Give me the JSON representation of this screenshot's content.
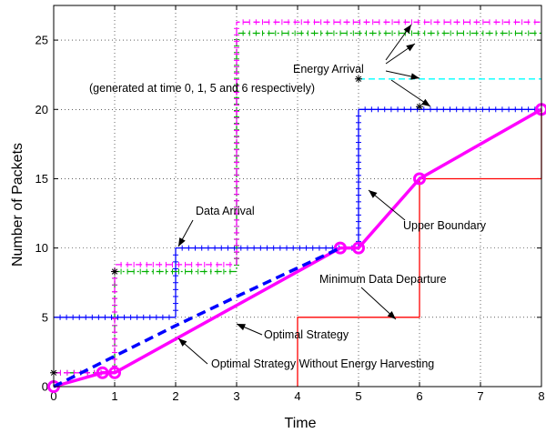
{
  "chart_data": {
    "type": "line",
    "xlabel": "Time",
    "ylabel": "Number of Packets",
    "xlim": [
      0,
      8
    ],
    "ylim": [
      0,
      27.5
    ],
    "xticks": [
      0,
      1,
      2,
      3,
      4,
      5,
      6,
      7,
      8
    ],
    "yticks": [
      0,
      5,
      10,
      15,
      20,
      25
    ],
    "grid": true,
    "series": [
      {
        "color": "#0000ff",
        "style": "solid",
        "marker": "plus",
        "step": true,
        "x": [
          0,
          2,
          2,
          5,
          5,
          8
        ],
        "y": [
          5,
          5,
          10,
          10,
          20,
          20
        ]
      },
      {
        "color": "#ff0000",
        "style": "solid",
        "step": true,
        "x": [
          4,
          4,
          6,
          6,
          8,
          8
        ],
        "y": [
          0,
          5,
          5,
          15,
          15,
          20
        ]
      },
      {
        "color": "#00b000",
        "style": "dashdot",
        "marker": "plus",
        "step": true,
        "x": [
          0,
          1,
          1,
          3,
          3,
          8
        ],
        "y": [
          1,
          1,
          8.3,
          8.3,
          25.5,
          25.5
        ]
      },
      {
        "color": "#ff00ff",
        "style": "dashed",
        "marker": "plus",
        "step": true,
        "x": [
          0,
          1,
          1,
          3,
          3,
          8
        ],
        "y": [
          1,
          1,
          8.8,
          8.8,
          26.3,
          26.3
        ]
      },
      {
        "color": "#00ffff",
        "style": "dashed",
        "x": [
          5,
          8
        ],
        "y": [
          22.2,
          22.2
        ]
      },
      {
        "color": "#ff00ff",
        "style": "solid-thick",
        "marker": "circle",
        "x": [
          0,
          0.8,
          1,
          4.7,
          5,
          6,
          8
        ],
        "y": [
          0,
          1,
          1,
          10,
          10,
          15,
          20
        ]
      },
      {
        "color": "#0000ff",
        "style": "dashed-thick",
        "x": [
          0,
          2,
          3,
          4.7
        ],
        "y": [
          0,
          4.4,
          6.5,
          10
        ]
      }
    ],
    "energy_markers": {
      "x": [
        0,
        1,
        5,
        6
      ],
      "y": [
        1,
        8.3,
        22.2,
        20.2
      ]
    },
    "annotations": {
      "energy_arrival": "Energy Arrival",
      "energy_arrival_note": "(generated at time 0, 1, 5 and 6 respectively)",
      "data_arrival": "Data Arrival",
      "upper_boundary": "Upper Boundary",
      "minimum_data_departure": "Minimum Data Departure",
      "optimal_strategy": "Optimal Strategy",
      "optimal_without_eh": "Optimal Strategy Without Energy Harvesting"
    }
  }
}
